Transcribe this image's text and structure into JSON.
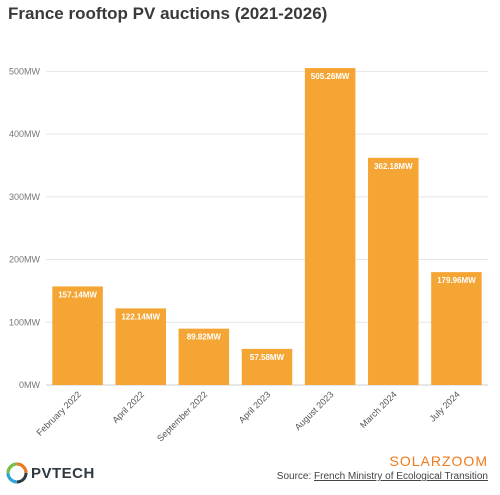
{
  "chart_data": {
    "type": "bar",
    "title": "France rooftop PV auctions (2021-2026)",
    "categories": [
      "February 2022",
      "April 2022",
      "September 2022",
      "April 2023",
      "August 2023",
      "March 2024",
      "July 2024"
    ],
    "values": [
      157.14,
      122.14,
      89.82,
      57.58,
      505.26,
      362.18,
      179.96
    ],
    "value_labels": [
      "157.14MW",
      "122.14MW",
      "89.82MW",
      "57.58MW",
      "505.26MW",
      "362.18MW",
      "179.96MW"
    ],
    "ylim": [
      0,
      550
    ],
    "yticks": [
      0,
      100,
      200,
      300,
      400,
      500
    ],
    "ytick_labels": [
      "0MW",
      "100MW",
      "200MW",
      "300MW",
      "400MW",
      "500MW"
    ],
    "xlabel": "",
    "ylabel": "",
    "grid": true,
    "bar_color": "#f4a533"
  },
  "footer": {
    "brand": "PVTECH",
    "partner": "SOLARZOOM",
    "source_prefix": "Source: ",
    "source_link": "French Ministry of Ecological Transition"
  },
  "colors": {
    "bar": "#f4a533",
    "grid": "#e6e6e6",
    "accent": "#f07a1a"
  }
}
